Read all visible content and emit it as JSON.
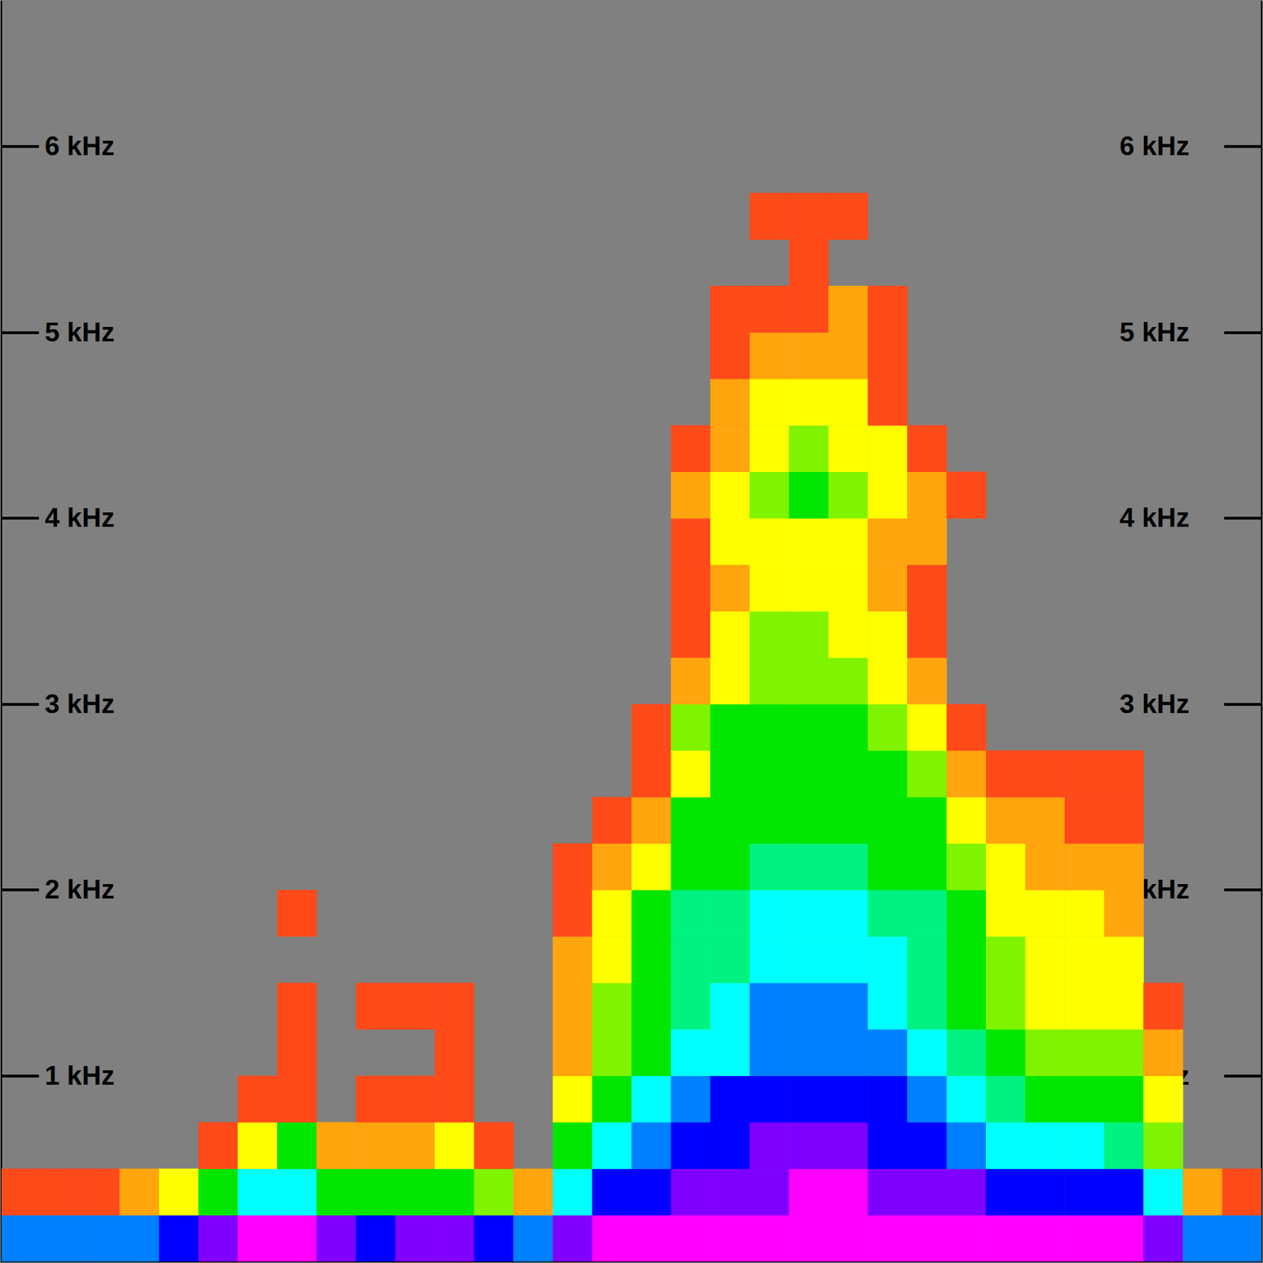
{
  "chart_data": {
    "type": "heatmap",
    "x_bins": [
      0,
      1,
      2,
      3,
      4,
      5,
      6,
      7,
      8,
      9,
      10,
      11,
      12,
      13,
      14,
      15,
      16,
      17,
      18,
      19,
      20,
      21,
      22,
      23,
      24,
      25,
      26,
      27,
      28,
      29,
      30,
      31,
      32
    ],
    "y_bins": [
      0,
      0.25,
      0.5,
      0.75,
      1,
      1.25,
      1.5,
      1.75,
      2,
      2.25,
      2.5,
      2.75,
      3,
      3.25,
      3.5,
      3.75,
      4,
      4.25,
      4.5,
      4.75,
      5,
      5.25,
      5.5,
      5.75,
      6,
      6.25,
      6.5,
      6.75
    ],
    "cells": [
      [
        0,
        0,
        4.5
      ],
      [
        0,
        0.25,
        1
      ],
      [
        1,
        0,
        4.5
      ],
      [
        1,
        0.25,
        1
      ],
      [
        2,
        0,
        4.5
      ],
      [
        2,
        0.25,
        1
      ],
      [
        3,
        0,
        4.5
      ],
      [
        3,
        0.25,
        1.5
      ],
      [
        4,
        0,
        5
      ],
      [
        4,
        0.25,
        2
      ],
      [
        5,
        0,
        5.5
      ],
      [
        5,
        0.25,
        3
      ],
      [
        5,
        0.5,
        1
      ],
      [
        6,
        0,
        6
      ],
      [
        6,
        0.25,
        4
      ],
      [
        6,
        0.5,
        2
      ],
      [
        6,
        0.75,
        1
      ],
      [
        7,
        0,
        6
      ],
      [
        7,
        0.25,
        4
      ],
      [
        7,
        0.5,
        3
      ],
      [
        7,
        0.75,
        1
      ],
      [
        7,
        1,
        1
      ],
      [
        7,
        1.25,
        1
      ],
      [
        7,
        1.75,
        1
      ],
      [
        8,
        0,
        5.5
      ],
      [
        8,
        0.25,
        3
      ],
      [
        8,
        0.5,
        1.5
      ],
      [
        9,
        0,
        5
      ],
      [
        9,
        0.25,
        3
      ],
      [
        9,
        0.5,
        1.5
      ],
      [
        9,
        0.75,
        1
      ],
      [
        9,
        1.25,
        1
      ],
      [
        10,
        0,
        5.5
      ],
      [
        10,
        0.25,
        3
      ],
      [
        10,
        0.5,
        1.5
      ],
      [
        10,
        0.75,
        1
      ],
      [
        10,
        1.25,
        1
      ],
      [
        11,
        0,
        5.5
      ],
      [
        11,
        0.25,
        3
      ],
      [
        11,
        0.5,
        2
      ],
      [
        11,
        0.75,
        1
      ],
      [
        11,
        1,
        1
      ],
      [
        11,
        1.25,
        1
      ],
      [
        12,
        0,
        5
      ],
      [
        12,
        0.25,
        2.5
      ],
      [
        12,
        0.5,
        1
      ],
      [
        13,
        0,
        4.5
      ],
      [
        13,
        0.25,
        1.5
      ],
      [
        14,
        0,
        5.5
      ],
      [
        14,
        0.25,
        4
      ],
      [
        14,
        0.5,
        3
      ],
      [
        14,
        0.75,
        2
      ],
      [
        14,
        1,
        1.5
      ],
      [
        14,
        1.25,
        1.5
      ],
      [
        14,
        1.5,
        1.5
      ],
      [
        14,
        1.75,
        1
      ],
      [
        14,
        2,
        1
      ],
      [
        15,
        0,
        6
      ],
      [
        15,
        0.25,
        5
      ],
      [
        15,
        0.5,
        4
      ],
      [
        15,
        0.75,
        3
      ],
      [
        15,
        1,
        2.5
      ],
      [
        15,
        1.25,
        2.5
      ],
      [
        15,
        1.5,
        2
      ],
      [
        15,
        1.75,
        2
      ],
      [
        15,
        2,
        1.5
      ],
      [
        15,
        2.25,
        1
      ],
      [
        16,
        0,
        6
      ],
      [
        16,
        0.25,
        5
      ],
      [
        16,
        0.5,
        4.5
      ],
      [
        16,
        0.75,
        4
      ],
      [
        16,
        1,
        3
      ],
      [
        16,
        1.25,
        3
      ],
      [
        16,
        1.5,
        3
      ],
      [
        16,
        1.75,
        3
      ],
      [
        16,
        2,
        2
      ],
      [
        16,
        2.25,
        1.5
      ],
      [
        16,
        2.5,
        1
      ],
      [
        16,
        2.75,
        1
      ],
      [
        17,
        0,
        6
      ],
      [
        17,
        0.25,
        5.5
      ],
      [
        17,
        0.5,
        5
      ],
      [
        17,
        0.75,
        4.5
      ],
      [
        17,
        1,
        4
      ],
      [
        17,
        1.25,
        3.5
      ],
      [
        17,
        1.5,
        3.5
      ],
      [
        17,
        1.75,
        3.5
      ],
      [
        17,
        2,
        3
      ],
      [
        17,
        2.25,
        3
      ],
      [
        17,
        2.5,
        2
      ],
      [
        17,
        2.75,
        2.5
      ],
      [
        17,
        3,
        1.5
      ],
      [
        17,
        3.25,
        1
      ],
      [
        17,
        3.5,
        1
      ],
      [
        17,
        3.75,
        1
      ],
      [
        17,
        4,
        1.5
      ],
      [
        17,
        4.25,
        1
      ],
      [
        18,
        0,
        6
      ],
      [
        18,
        0.25,
        5.5
      ],
      [
        18,
        0.5,
        5
      ],
      [
        18,
        0.75,
        5
      ],
      [
        18,
        1,
        4
      ],
      [
        18,
        1.25,
        4
      ],
      [
        18,
        1.5,
        3.5
      ],
      [
        18,
        1.75,
        3.5
      ],
      [
        18,
        2,
        3
      ],
      [
        18,
        2.25,
        3
      ],
      [
        18,
        2.5,
        3
      ],
      [
        18,
        2.75,
        3
      ],
      [
        18,
        3,
        2
      ],
      [
        18,
        3.25,
        2
      ],
      [
        18,
        3.5,
        1.5
      ],
      [
        18,
        3.75,
        2
      ],
      [
        18,
        4,
        2
      ],
      [
        18,
        4.25,
        1.5
      ],
      [
        18,
        4.5,
        1.5
      ],
      [
        18,
        4.75,
        1
      ],
      [
        18,
        5,
        1
      ],
      [
        19,
        0,
        6
      ],
      [
        19,
        0.25,
        5.5
      ],
      [
        19,
        0.5,
        5.5
      ],
      [
        19,
        0.75,
        5
      ],
      [
        19,
        1,
        4.5
      ],
      [
        19,
        1.25,
        4.5
      ],
      [
        19,
        1.5,
        4
      ],
      [
        19,
        1.75,
        4
      ],
      [
        19,
        2,
        3.5
      ],
      [
        19,
        2.25,
        3
      ],
      [
        19,
        2.5,
        3
      ],
      [
        19,
        2.75,
        3
      ],
      [
        19,
        3,
        2.5
      ],
      [
        19,
        3.25,
        2.5
      ],
      [
        19,
        3.5,
        2
      ],
      [
        19,
        3.75,
        2
      ],
      [
        19,
        4,
        2.5
      ],
      [
        19,
        4.25,
        2
      ],
      [
        19,
        4.5,
        2
      ],
      [
        19,
        4.75,
        1.5
      ],
      [
        19,
        5,
        1
      ],
      [
        19,
        5.5,
        1
      ],
      [
        20,
        0,
        6
      ],
      [
        20,
        0.25,
        6
      ],
      [
        20,
        0.5,
        5.5
      ],
      [
        20,
        0.75,
        5
      ],
      [
        20,
        1,
        4.5
      ],
      [
        20,
        1.25,
        4.5
      ],
      [
        20,
        1.5,
        4
      ],
      [
        20,
        1.75,
        4
      ],
      [
        20,
        2,
        3.5
      ],
      [
        20,
        2.25,
        3
      ],
      [
        20,
        2.5,
        3
      ],
      [
        20,
        2.75,
        3
      ],
      [
        20,
        3,
        2.5
      ],
      [
        20,
        3.25,
        2.5
      ],
      [
        20,
        3.5,
        2
      ],
      [
        20,
        3.75,
        2
      ],
      [
        20,
        4,
        3
      ],
      [
        20,
        4.25,
        2.5
      ],
      [
        20,
        4.5,
        2
      ],
      [
        20,
        4.75,
        1.5
      ],
      [
        20,
        5,
        1
      ],
      [
        20,
        5.25,
        1
      ],
      [
        20,
        5.5,
        1
      ],
      [
        21,
        0,
        6
      ],
      [
        21,
        0.25,
        6
      ],
      [
        21,
        0.5,
        5.5
      ],
      [
        21,
        0.75,
        5
      ],
      [
        21,
        1,
        4.5
      ],
      [
        21,
        1.25,
        4.5
      ],
      [
        21,
        1.5,
        4
      ],
      [
        21,
        1.75,
        4
      ],
      [
        21,
        2,
        3.5
      ],
      [
        21,
        2.25,
        3
      ],
      [
        21,
        2.5,
        3
      ],
      [
        21,
        2.75,
        3
      ],
      [
        21,
        3,
        2.5
      ],
      [
        21,
        3.25,
        2
      ],
      [
        21,
        3.5,
        2
      ],
      [
        21,
        3.75,
        2
      ],
      [
        21,
        4,
        2.5
      ],
      [
        21,
        4.25,
        2
      ],
      [
        21,
        4.5,
        2
      ],
      [
        21,
        4.75,
        1.5
      ],
      [
        21,
        5,
        1.5
      ],
      [
        21,
        5.5,
        1
      ],
      [
        22,
        0,
        6
      ],
      [
        22,
        0.25,
        5.5
      ],
      [
        22,
        0.5,
        5
      ],
      [
        22,
        0.75,
        5
      ],
      [
        22,
        1,
        4.5
      ],
      [
        22,
        1.25,
        4
      ],
      [
        22,
        1.5,
        4
      ],
      [
        22,
        1.75,
        3.5
      ],
      [
        22,
        2,
        3
      ],
      [
        22,
        2.25,
        3
      ],
      [
        22,
        2.5,
        3
      ],
      [
        22,
        2.75,
        2.5
      ],
      [
        22,
        3,
        2
      ],
      [
        22,
        3.25,
        2
      ],
      [
        22,
        3.5,
        1.5
      ],
      [
        22,
        3.75,
        1.5
      ],
      [
        22,
        4,
        2
      ],
      [
        22,
        4.25,
        2
      ],
      [
        22,
        4.5,
        1
      ],
      [
        22,
        4.75,
        1
      ],
      [
        22,
        5,
        1
      ],
      [
        23,
        0,
        6
      ],
      [
        23,
        0.25,
        5.5
      ],
      [
        23,
        0.5,
        5
      ],
      [
        23,
        0.75,
        4.5
      ],
      [
        23,
        1,
        4
      ],
      [
        23,
        1.25,
        3.5
      ],
      [
        23,
        1.5,
        3.5
      ],
      [
        23,
        1.75,
        3.5
      ],
      [
        23,
        2,
        3
      ],
      [
        23,
        2.25,
        3
      ],
      [
        23,
        2.5,
        2.5
      ],
      [
        23,
        2.75,
        2
      ],
      [
        23,
        3,
        1.5
      ],
      [
        23,
        3.25,
        1
      ],
      [
        23,
        3.5,
        1
      ],
      [
        23,
        3.75,
        1.5
      ],
      [
        23,
        4,
        1.5
      ],
      [
        23,
        4.25,
        1
      ],
      [
        24,
        0,
        6
      ],
      [
        24,
        0.25,
        5.5
      ],
      [
        24,
        0.5,
        4.5
      ],
      [
        24,
        0.75,
        4
      ],
      [
        24,
        1,
        3.5
      ],
      [
        24,
        1.25,
        3
      ],
      [
        24,
        1.5,
        3
      ],
      [
        24,
        1.75,
        3
      ],
      [
        24,
        2,
        2.5
      ],
      [
        24,
        2.25,
        2
      ],
      [
        24,
        2.5,
        1.5
      ],
      [
        24,
        2.75,
        1
      ],
      [
        24,
        4,
        1
      ],
      [
        25,
        0,
        6
      ],
      [
        25,
        0.25,
        5
      ],
      [
        25,
        0.5,
        4
      ],
      [
        25,
        0.75,
        3.5
      ],
      [
        25,
        1,
        3
      ],
      [
        25,
        1.25,
        2.5
      ],
      [
        25,
        1.5,
        2.5
      ],
      [
        25,
        1.75,
        2
      ],
      [
        25,
        2,
        2
      ],
      [
        25,
        2.25,
        1.5
      ],
      [
        25,
        2.5,
        1
      ],
      [
        26,
        0,
        6
      ],
      [
        26,
        0.25,
        5
      ],
      [
        26,
        0.5,
        4
      ],
      [
        26,
        0.75,
        3
      ],
      [
        26,
        1,
        2.5
      ],
      [
        26,
        1.25,
        2
      ],
      [
        26,
        1.5,
        2
      ],
      [
        26,
        1.75,
        2
      ],
      [
        26,
        2,
        1.5
      ],
      [
        26,
        2.25,
        1.5
      ],
      [
        26,
        2.5,
        1
      ],
      [
        27,
        0,
        6
      ],
      [
        27,
        0.25,
        5
      ],
      [
        27,
        0.5,
        4
      ],
      [
        27,
        0.75,
        3
      ],
      [
        27,
        1,
        2.5
      ],
      [
        27,
        1.25,
        2
      ],
      [
        27,
        1.5,
        2
      ],
      [
        27,
        1.75,
        2
      ],
      [
        27,
        2,
        1.5
      ],
      [
        27,
        2.25,
        1
      ],
      [
        27,
        2.5,
        1
      ],
      [
        28,
        0,
        6
      ],
      [
        28,
        0.25,
        5
      ],
      [
        28,
        0.5,
        3.5
      ],
      [
        28,
        0.75,
        3
      ],
      [
        28,
        1,
        2.5
      ],
      [
        28,
        1.25,
        2
      ],
      [
        28,
        1.5,
        2
      ],
      [
        28,
        1.75,
        1.5
      ],
      [
        28,
        2,
        1.5
      ],
      [
        28,
        2.25,
        1
      ],
      [
        28,
        2.5,
        1
      ],
      [
        29,
        0,
        5.5
      ],
      [
        29,
        0.25,
        4
      ],
      [
        29,
        0.5,
        2.5
      ],
      [
        29,
        0.75,
        2
      ],
      [
        29,
        1,
        1.5
      ],
      [
        29,
        1.25,
        1
      ],
      [
        30,
        0,
        4.5
      ],
      [
        30,
        0.25,
        1.5
      ],
      [
        31,
        0,
        4.5
      ],
      [
        31,
        0.25,
        1
      ]
    ],
    "color_range": [
      1,
      6
    ],
    "xlim": [
      0,
      32
    ],
    "ylim": [
      0,
      6.78
    ],
    "yticks": [
      {
        "value": 1,
        "label": "1 kHz"
      },
      {
        "value": 2,
        "label": "2 kHz"
      },
      {
        "value": 3,
        "label": "3 kHz"
      },
      {
        "value": 4,
        "label": "4 kHz"
      },
      {
        "value": 5,
        "label": "5 kHz"
      },
      {
        "value": 6,
        "label": "6 kHz"
      }
    ],
    "tick_labels": "y",
    "grid": false
  }
}
